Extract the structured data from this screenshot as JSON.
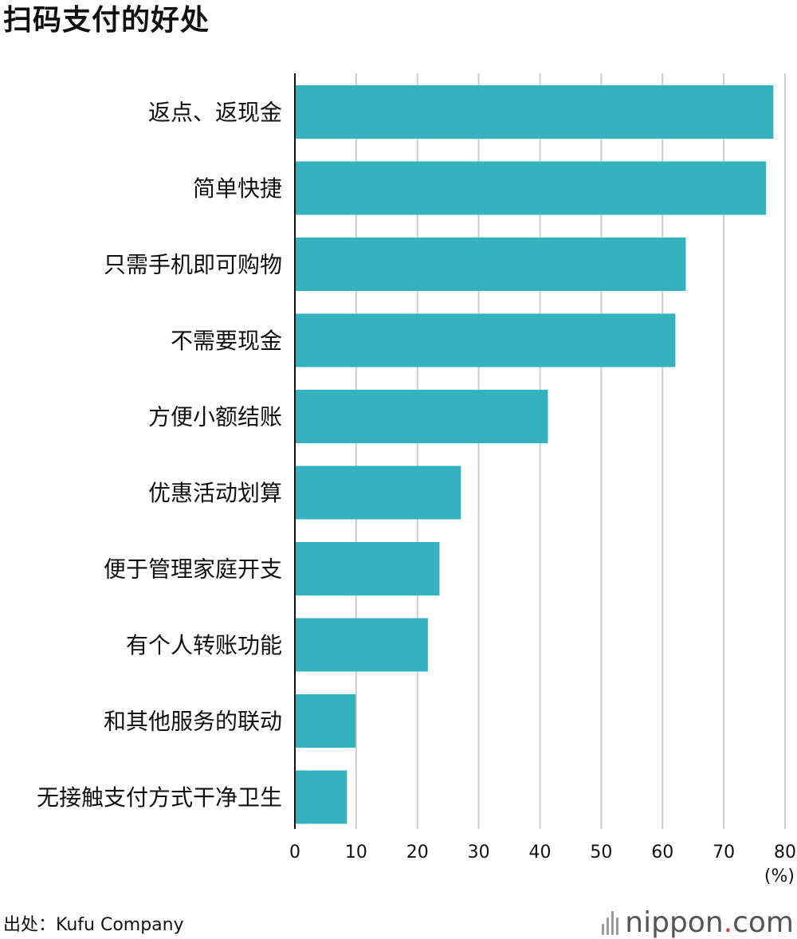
{
  "title": "扫码支付的好处",
  "source": "出处：Kufu Company",
  "logo": {
    "name": "nippon",
    "dot": ".",
    "tld": "com"
  },
  "colors": {
    "bar": "#35b1c0",
    "grid": "#cccccc",
    "axis": "#111111",
    "text": "#111111"
  },
  "chart_data": {
    "type": "bar",
    "orientation": "horizontal",
    "title": "扫码支付的好处",
    "categories": [
      "返点、返现金",
      "简单快捷",
      "只需手机即可购物",
      "不需要现金",
      "方便小额结账",
      "优惠活动划算",
      "便于管理家庭开支",
      "有个人转账功能",
      "和其他服务的联动",
      "无接触支付方式干净卫生"
    ],
    "values": [
      78.1,
      76.9,
      63.8,
      62.1,
      41.3,
      27.1,
      23.6,
      21.7,
      9.9,
      8.5
    ],
    "xlim": [
      0,
      80
    ],
    "xticks": [
      0,
      10,
      20,
      30,
      40,
      50,
      60,
      70,
      80
    ],
    "xlabel": "(%)",
    "ylabel": "",
    "grid": true
  }
}
